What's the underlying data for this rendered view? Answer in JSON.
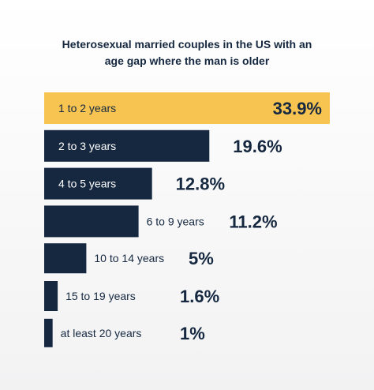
{
  "chart_data": {
    "type": "bar",
    "orientation": "horizontal",
    "title_parts": {
      "line1": "Heterosexual married couples in the US with an",
      "line2_pre": "age gap where the ",
      "line2_highlight": "man",
      "line2_post": " is older"
    },
    "categories": [
      "1 to 2 years",
      "2 to 3 years",
      "4 to 5 years",
      "6 to 9 years",
      "10 to 14 years",
      "15 to 19 years",
      "at least 20 years"
    ],
    "values": [
      33.9,
      19.6,
      12.8,
      11.2,
      5,
      1.6,
      1
    ],
    "value_labels": [
      "33.9%",
      "19.6%",
      "12.8%",
      "11.2%",
      "5%",
      "1.6%",
      "1%"
    ],
    "xlim": [
      0,
      33.9
    ],
    "grid": false,
    "legend": "none",
    "colors": {
      "highlight_bar": "#f8c451",
      "bar": "#152840",
      "text_dark": "#152840",
      "text_light": "#ffffff"
    }
  }
}
